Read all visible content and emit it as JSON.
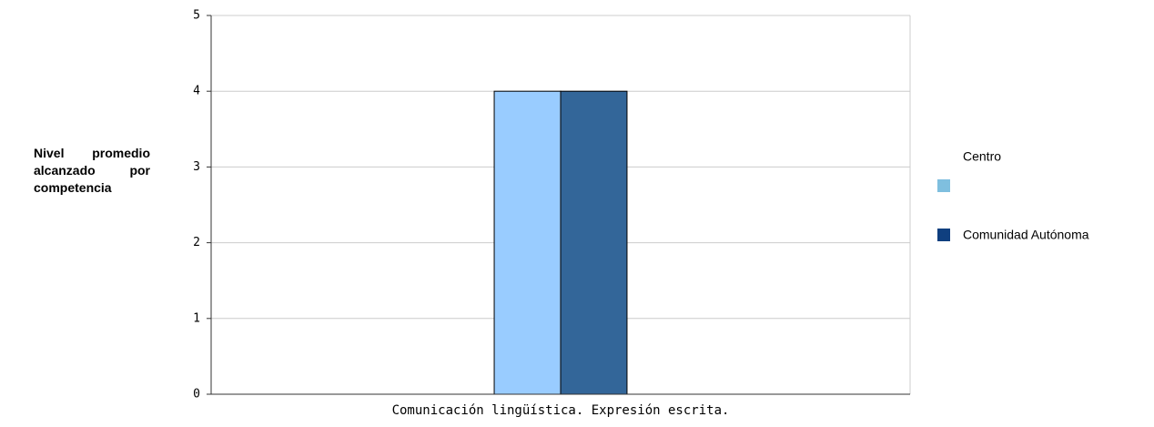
{
  "chart_data": {
    "type": "bar",
    "y_axis_label": "Nivel promedio alcanzado por competencia",
    "categories": [
      "Comunicación lingüística. Expresión escrita."
    ],
    "series": [
      {
        "name": "Centro",
        "color": "#99ccff",
        "legend_color": "#7fbfdf",
        "values": [
          4
        ]
      },
      {
        "name": "Comunidad Autónoma",
        "color": "#336699",
        "legend_color": "#0f3f7f",
        "values": [
          4
        ]
      }
    ],
    "ylim": [
      0,
      5
    ],
    "yticks": [
      0,
      1,
      2,
      3,
      4,
      5
    ],
    "grid": true
  }
}
